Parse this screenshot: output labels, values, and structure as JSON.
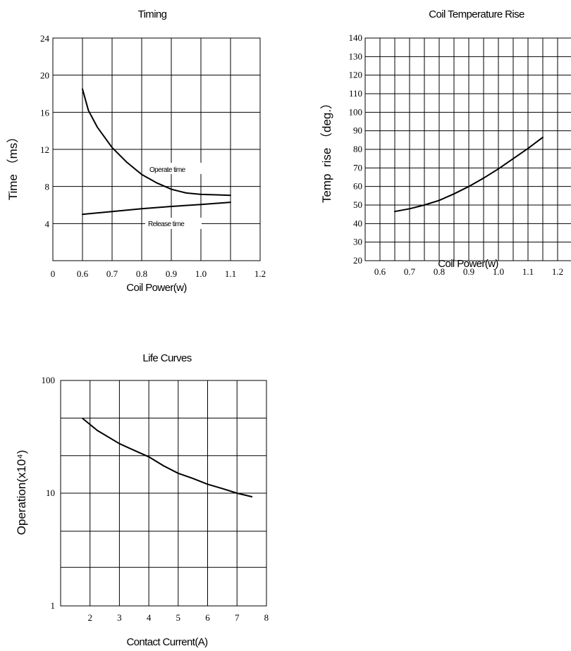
{
  "chart_data": [
    {
      "type": "line",
      "title": "Timing",
      "xlabel": "Coil Power(w)",
      "ylabel": "Time （ms）",
      "xlim": [
        0,
        1.2
      ],
      "ylim": [
        0,
        24
      ],
      "x_ticks": [
        "0",
        "0.6",
        "0.7",
        "0.8",
        "0.9",
        "1.0",
        "1.1",
        "1.2"
      ],
      "y_ticks": [
        "4",
        "8",
        "12",
        "16",
        "20",
        "24"
      ],
      "grid": true,
      "series": [
        {
          "name": "Operate time",
          "x": [
            0.6,
            0.62,
            0.65,
            0.7,
            0.75,
            0.8,
            0.85,
            0.9,
            0.95,
            1.0,
            1.05,
            1.1
          ],
          "y": [
            18.5,
            16.2,
            14.4,
            12.2,
            10.6,
            9.3,
            8.4,
            7.7,
            7.3,
            7.15,
            7.1,
            7.05
          ]
        },
        {
          "name": "Release time",
          "x": [
            0.6,
            0.7,
            0.8,
            0.9,
            1.0,
            1.1
          ],
          "y": [
            5.0,
            5.3,
            5.6,
            5.85,
            6.05,
            6.3
          ]
        }
      ]
    },
    {
      "type": "line",
      "title": "Coil Temperature Rise",
      "xlabel": "Coil Power(w)",
      "ylabel": "Temp  rise （deg.）",
      "xlim": [
        0.55,
        1.25
      ],
      "ylim": [
        20,
        140
      ],
      "x_ticks": [
        "0.6",
        "0.7",
        "0.8",
        "0.9",
        "1.0",
        "1.1",
        "1.2"
      ],
      "y_ticks": [
        "20",
        "30",
        "40",
        "50",
        "60",
        "70",
        "80",
        "90",
        "100",
        "110",
        "120",
        "130",
        "140"
      ],
      "grid": true,
      "series": [
        {
          "x": [
            0.65,
            0.7,
            0.75,
            0.8,
            0.85,
            0.9,
            0.95,
            1.0,
            1.05,
            1.1,
            1.15
          ],
          "y": [
            46.5,
            48,
            50,
            52.5,
            56,
            60,
            64.5,
            69.5,
            75,
            80.5,
            86.5
          ]
        }
      ]
    },
    {
      "type": "line",
      "title": "Life Curves",
      "xlabel": "Contact Current(A)",
      "ylabel": "Operation(x10⁴)",
      "y_scale": "log",
      "xlim": [
        1,
        8
      ],
      "ylim": [
        1,
        100
      ],
      "x_ticks": [
        "2",
        "3",
        "4",
        "5",
        "6",
        "7",
        "8"
      ],
      "y_ticks": [
        "1",
        "10",
        "100"
      ],
      "grid": true,
      "series": [
        {
          "x": [
            1.75,
            2.25,
            3.0,
            3.5,
            4.0,
            4.5,
            5.0,
            5.5,
            6.0,
            6.5,
            7.0,
            7.5
          ],
          "y": [
            46,
            36,
            27.5,
            24,
            21,
            17.5,
            15,
            13.5,
            12,
            11,
            10,
            9.3
          ]
        }
      ]
    }
  ]
}
